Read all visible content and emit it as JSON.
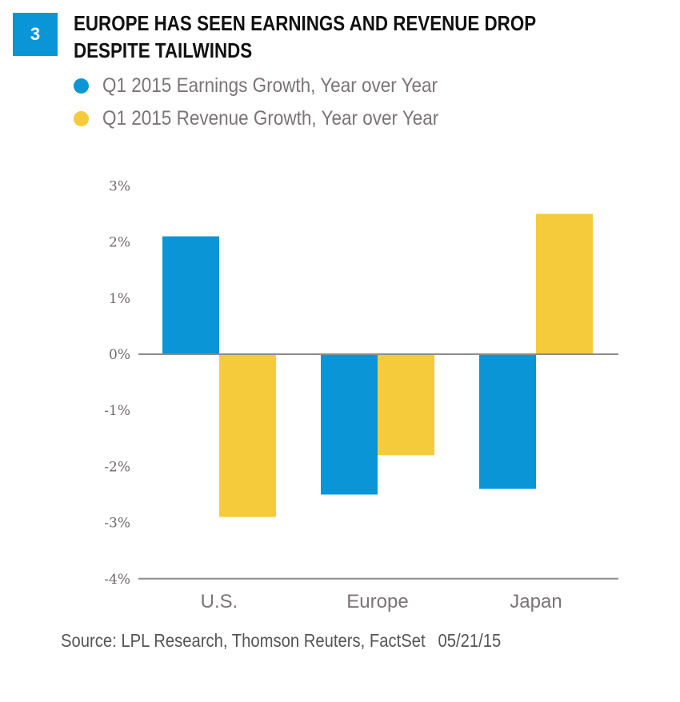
{
  "figure": {
    "number": "3",
    "title_line1": "EUROPE HAS SEEN EARNINGS AND REVENUE DROP",
    "title_line2": "DESPITE TAILWINDS",
    "source": "Source: LPL Research, Thomson Reuters, FactSet",
    "date": "05/21/15"
  },
  "colors": {
    "earnings": "#0a95d6",
    "revenue": "#f5cb3c",
    "badge": "#0a95d6",
    "axis": "#8c8c8c"
  },
  "chart_data": {
    "type": "bar",
    "title": "EUROPE HAS SEEN EARNINGS AND REVENUE DROP DESPITE TAILWINDS",
    "xlabel": "",
    "ylabel": "",
    "categories": [
      "U.S.",
      "Europe",
      "Japan"
    ],
    "series": [
      {
        "name": "Q1 2015 Earnings Growth, Year over Year",
        "color": "#0a95d6",
        "values": [
          2.1,
          -2.5,
          -2.4
        ]
      },
      {
        "name": "Q1 2015 Revenue Growth, Year over Year",
        "color": "#f5cb3c",
        "values": [
          -2.9,
          -1.8,
          2.5
        ]
      }
    ],
    "ylim": [
      -4,
      3
    ],
    "yticks": [
      3,
      2,
      1,
      0,
      -1,
      -2,
      -3,
      -4
    ],
    "ytick_labels": [
      "3%",
      "2%",
      "1%",
      "0%",
      "-1%",
      "-2%",
      "-3%",
      "-4%"
    ],
    "grid": false,
    "legend_position": "top-left"
  }
}
